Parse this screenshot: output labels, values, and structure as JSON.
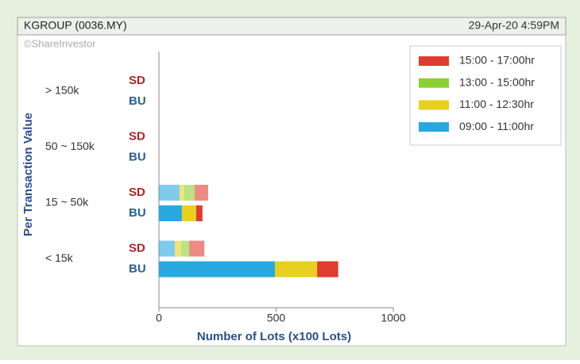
{
  "header": {
    "title": "KGROUP (0036.MY)",
    "timestamp": "29-Apr-20 4:59PM",
    "watermark": "©ShareInvestor"
  },
  "chart_data": {
    "type": "stacked_bar_horizontal",
    "xlabel": "Number of Lots (x100 Lots)",
    "ylabel": "Per Transaction Value",
    "categories": [
      "> 150k",
      "50 ~ 150k",
      "15 ~ 50k",
      "< 15k"
    ],
    "sub_categories": [
      "SD",
      "BU"
    ],
    "series": [
      {
        "name": "09:00 - 11:00hr",
        "color": "#29a8e0",
        "values": [
          [
            0,
            0
          ],
          [
            0,
            0
          ],
          [
            88,
            98
          ],
          [
            68,
            495
          ]
        ]
      },
      {
        "name": "11:00 - 12:30hr",
        "color": "#e8d020",
        "values": [
          [
            0,
            0
          ],
          [
            0,
            0
          ],
          [
            20,
            61
          ],
          [
            27,
            180
          ]
        ]
      },
      {
        "name": "13:00 - 15:00hr",
        "color": "#8cd030",
        "values": [
          [
            0,
            0
          ],
          [
            0,
            0
          ],
          [
            44,
            0
          ],
          [
            34,
            0
          ]
        ]
      },
      {
        "name": "15:00 - 17:00hr",
        "color": "#e03c30",
        "values": [
          [
            0,
            0
          ],
          [
            0,
            0
          ],
          [
            58,
            27
          ],
          [
            65,
            90
          ]
        ]
      }
    ],
    "xlim": [
      0,
      1000
    ],
    "xticks": [
      0,
      500,
      1000
    ],
    "grid": false,
    "legend": "top-right"
  }
}
